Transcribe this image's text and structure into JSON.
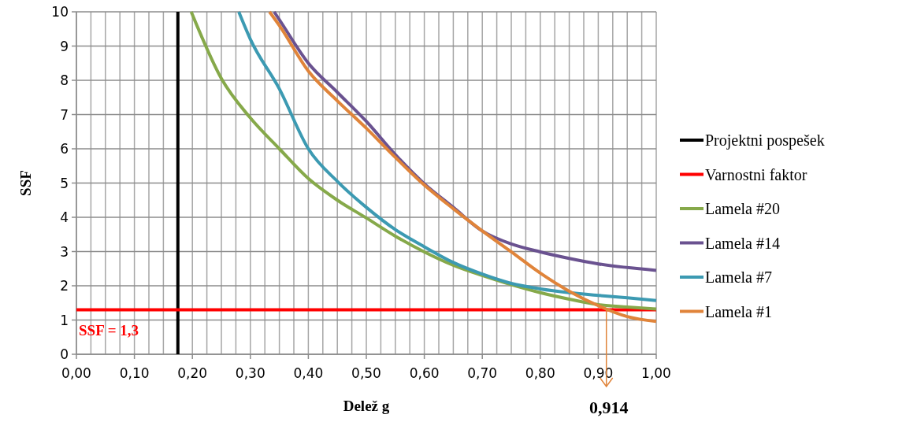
{
  "chart_data": {
    "type": "line",
    "xlabel": "Delež g",
    "ylabel": "SSF",
    "xlim": [
      0,
      1
    ],
    "ylim": [
      0,
      10
    ],
    "xticks": [
      {
        "value": 0,
        "label": "0,00"
      },
      {
        "value": 0.025,
        "label": null
      },
      {
        "value": 0.05,
        "label": null
      },
      {
        "value": 0.075,
        "label": null
      },
      {
        "value": 0.1,
        "label": "0,10"
      },
      {
        "value": 0.125,
        "label": null
      },
      {
        "value": 0.15,
        "label": null
      },
      {
        "value": 0.175,
        "label": null
      },
      {
        "value": 0.2,
        "label": "0,20"
      },
      {
        "value": 0.225,
        "label": null
      },
      {
        "value": 0.25,
        "label": null
      },
      {
        "value": 0.275,
        "label": null
      },
      {
        "value": 0.3,
        "label": "0,30"
      },
      {
        "value": 0.325,
        "label": null
      },
      {
        "value": 0.35,
        "label": null
      },
      {
        "value": 0.375,
        "label": null
      },
      {
        "value": 0.4,
        "label": "0,40"
      },
      {
        "value": 0.425,
        "label": null
      },
      {
        "value": 0.45,
        "label": null
      },
      {
        "value": 0.475,
        "label": null
      },
      {
        "value": 0.5,
        "label": "0,50"
      },
      {
        "value": 0.525,
        "label": null
      },
      {
        "value": 0.55,
        "label": null
      },
      {
        "value": 0.575,
        "label": null
      },
      {
        "value": 0.6,
        "label": "0,60"
      },
      {
        "value": 0.625,
        "label": null
      },
      {
        "value": 0.65,
        "label": null
      },
      {
        "value": 0.675,
        "label": null
      },
      {
        "value": 0.7,
        "label": "0,70"
      },
      {
        "value": 0.725,
        "label": null
      },
      {
        "value": 0.75,
        "label": null
      },
      {
        "value": 0.775,
        "label": null
      },
      {
        "value": 0.8,
        "label": "0,80"
      },
      {
        "value": 0.825,
        "label": null
      },
      {
        "value": 0.85,
        "label": null
      },
      {
        "value": 0.875,
        "label": null
      },
      {
        "value": 0.9,
        "label": "0,90"
      },
      {
        "value": 0.925,
        "label": null
      },
      {
        "value": 0.95,
        "label": null
      },
      {
        "value": 0.975,
        "label": null
      },
      {
        "value": 1,
        "label": "1,00"
      }
    ],
    "yticks": [
      0,
      1,
      2,
      3,
      4,
      5,
      6,
      7,
      8,
      9,
      10
    ],
    "grid": true,
    "legend": "right",
    "line_style": "solid",
    "series": [
      {
        "name": "Projektni pospešek",
        "color": "#000000",
        "x": [
          0.175,
          0.175
        ],
        "values": [
          0,
          10
        ]
      },
      {
        "name": "Varnostni faktor",
        "color": "#ff0000",
        "x": [
          0,
          1
        ],
        "values": [
          1.3,
          1.3
        ]
      },
      {
        "name": "Lamela #20",
        "color": "#86a94a",
        "x": [
          0.198,
          0.25,
          0.3,
          0.35,
          0.4,
          0.45,
          0.5,
          0.55,
          0.6,
          0.65,
          0.7,
          0.75,
          0.8,
          0.85,
          0.9,
          0.95,
          1
        ],
        "values": [
          10,
          8.05,
          6.9,
          6.0,
          5.13,
          4.5,
          3.98,
          3.45,
          2.99,
          2.6,
          2.3,
          2.03,
          1.8,
          1.61,
          1.45,
          1.38,
          1.32
        ]
      },
      {
        "name": "Lamela #14",
        "color": "#6a5290",
        "x": [
          0.341,
          0.35,
          0.4,
          0.45,
          0.5,
          0.55,
          0.6,
          0.65,
          0.7,
          0.75,
          0.8,
          0.85,
          0.9,
          1
        ],
        "values": [
          10,
          9.77,
          8.5,
          7.65,
          6.8,
          5.83,
          4.98,
          4.29,
          3.6,
          3.22,
          2.99,
          2.8,
          2.64,
          2.45
        ]
      },
      {
        "name": "Lamela #7",
        "color": "#3c9ab2",
        "x": [
          0.28,
          0.3,
          0.35,
          0.4,
          0.45,
          0.5,
          0.55,
          0.6,
          0.65,
          0.7,
          0.75,
          0.8,
          0.85,
          0.9,
          0.95,
          1
        ],
        "values": [
          10,
          9.2,
          7.75,
          6.0,
          5.05,
          4.29,
          3.64,
          3.14,
          2.68,
          2.34,
          2.07,
          1.91,
          1.8,
          1.72,
          1.65,
          1.57
        ]
      },
      {
        "name": "Lamela #1",
        "color": "#e0843a",
        "x": [
          0.333,
          0.35,
          0.4,
          0.45,
          0.5,
          0.55,
          0.6,
          0.65,
          0.7,
          0.75,
          0.8,
          0.85,
          0.9,
          0.95,
          1
        ],
        "values": [
          10,
          9.6,
          8.27,
          7.4,
          6.6,
          5.75,
          4.94,
          4.25,
          3.6,
          2.99,
          2.37,
          1.84,
          1.42,
          1.1,
          0.96
        ]
      }
    ],
    "annotations": [
      {
        "text": "SSF = 1,3",
        "x": 0,
        "y": 1.3
      },
      {
        "text": "0,914",
        "x": 0.914,
        "y": 1.3
      }
    ]
  }
}
